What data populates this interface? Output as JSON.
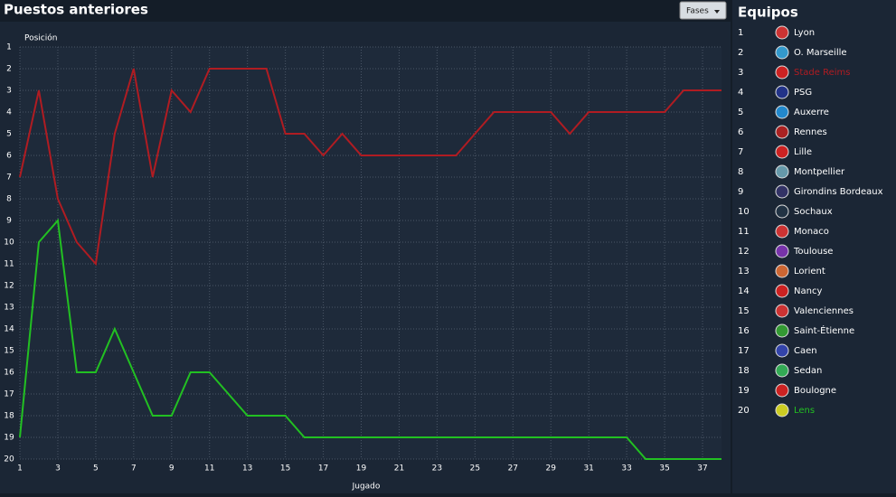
{
  "header": {
    "title": "Puestos anteriores",
    "button": "Fases"
  },
  "chart_data": {
    "type": "line",
    "xlabel": "Jugado",
    "ylabel": "Posición",
    "x": [
      1,
      2,
      3,
      4,
      5,
      6,
      7,
      8,
      9,
      10,
      11,
      12,
      13,
      14,
      15,
      16,
      17,
      18,
      19,
      20,
      21,
      22,
      23,
      24,
      25,
      26,
      27,
      28,
      29,
      30,
      31,
      32,
      33,
      34,
      35,
      36,
      37,
      38
    ],
    "series": [
      {
        "name": "Stade Reims",
        "color": "#b01c22",
        "values": [
          7,
          3,
          8,
          10,
          11,
          5,
          2,
          7,
          3,
          4,
          2,
          2,
          2,
          2,
          5,
          5,
          6,
          5,
          6,
          6,
          6,
          6,
          6,
          6,
          5,
          4,
          4,
          4,
          4,
          5,
          4,
          4,
          4,
          4,
          4,
          3,
          3,
          3
        ]
      },
      {
        "name": "Lens",
        "color": "#22c022",
        "values": [
          19,
          10,
          9,
          16,
          16,
          14,
          16,
          18,
          18,
          16,
          16,
          17,
          18,
          18,
          18,
          19,
          19,
          19,
          19,
          19,
          19,
          19,
          19,
          19,
          19,
          19,
          19,
          19,
          19,
          19,
          19,
          19,
          19,
          20,
          20,
          20,
          20,
          20
        ]
      }
    ],
    "xlim": [
      1,
      38
    ],
    "xticks": [
      1,
      3,
      5,
      7,
      9,
      11,
      13,
      15,
      17,
      19,
      21,
      23,
      25,
      27,
      29,
      31,
      33,
      35,
      37
    ],
    "ylim": [
      1,
      20
    ],
    "y_inverted": true,
    "yticks": [
      1,
      2,
      3,
      4,
      5,
      6,
      7,
      8,
      9,
      10,
      11,
      12,
      13,
      14,
      15,
      16,
      17,
      18,
      19,
      20
    ],
    "grid": true
  },
  "sidebar": {
    "title": "Equipos",
    "teams": [
      {
        "rank": 1,
        "name": "Lyon"
      },
      {
        "rank": 2,
        "name": "O. Marseille"
      },
      {
        "rank": 3
      },
      {
        "rank": 4,
        "name": "PSG"
      },
      {
        "rank": 5,
        "name": "Auxerre"
      },
      {
        "rank": 6,
        "name": "Rennes"
      },
      {
        "rank": 7,
        "name": "Lille"
      },
      {
        "rank": 8,
        "name": "Montpellier"
      },
      {
        "rank": 9,
        "name": "Girondins Bordeaux"
      },
      {
        "rank": 10,
        "name": "Sochaux"
      },
      {
        "rank": 11,
        "name": "Monaco"
      },
      {
        "rank": 12,
        "name": "Toulouse"
      },
      {
        "rank": 13,
        "name": "Lorient"
      },
      {
        "rank": 14,
        "name": "Nancy"
      },
      {
        "rank": 15,
        "name": "Valenciennes"
      },
      {
        "rank": 16,
        "name": "Saint-Étienne"
      },
      {
        "rank": 17,
        "name": "Caen"
      },
      {
        "rank": 18,
        "name": "Sedan"
      },
      {
        "rank": 19,
        "name": "Boulogne"
      },
      {
        "rank": 20
      }
    ]
  }
}
